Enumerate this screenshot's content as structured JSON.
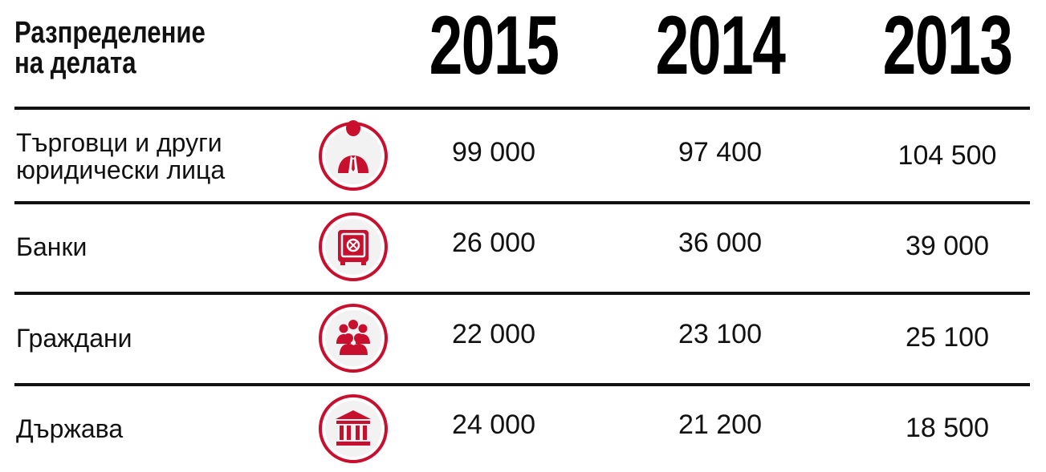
{
  "header": {
    "title": [
      "Разпределение",
      "на делата"
    ],
    "columns": [
      "2015",
      "2014",
      "2013"
    ]
  },
  "table": {
    "rows": [
      {
        "label": [
          "Търговци и други",
          "юридически лица"
        ],
        "values": [
          "99 000",
          "97 400",
          "104 500"
        ]
      },
      {
        "label": [
          "Банки"
        ],
        "values": [
          "26 000",
          "36 000",
          "39 000"
        ]
      },
      {
        "label": [
          "Граждани"
        ],
        "values": [
          "22 000",
          "23 100",
          "25 100"
        ]
      },
      {
        "label": [
          "Държава"
        ],
        "values": [
          "24 000",
          "21 200",
          "18 500"
        ]
      }
    ]
  }
}
